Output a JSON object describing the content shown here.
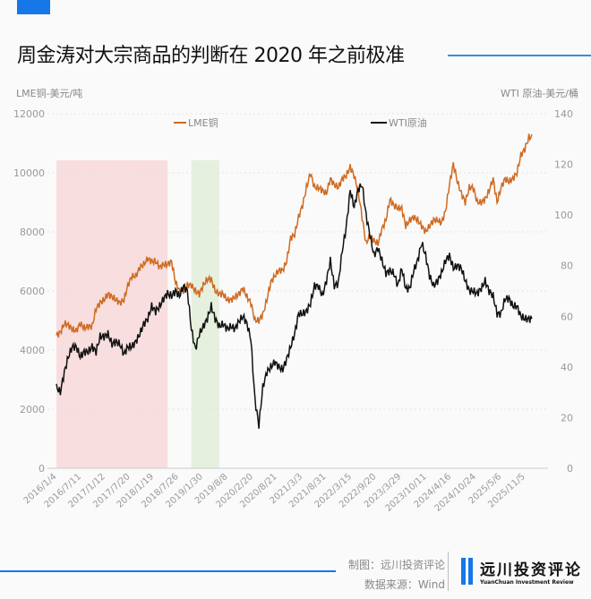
{
  "header": {
    "title": "周金涛对大宗商品的判断在 2020 年之前极准"
  },
  "footer": {
    "credit_line1": "制图：远川投资评论",
    "credit_line2": "数据来源：Wind",
    "logo_cn": "远川投资评论",
    "logo_en": "YuanChuan Investment Review"
  },
  "colors": {
    "copper": "#cf6a21",
    "oil": "#111111",
    "accent": "#1677e8",
    "shade_pink": "#f8dede",
    "shade_green": "#e6f0de"
  },
  "chart_data": {
    "type": "line",
    "title": "周金涛对大宗商品的判断在 2020 年之前极准",
    "ylabel_left": "LME铜-美元/吨",
    "ylabel_right": "WTI 原油-美元/桶",
    "ylim_left": [
      0,
      12000
    ],
    "ylim_right": [
      0,
      140
    ],
    "yticks_left": [
      "0",
      "2000",
      "4000",
      "6000",
      "8000",
      "10000",
      "12000"
    ],
    "yticks_right": [
      "0",
      "20",
      "40",
      "60",
      "80",
      "100",
      "120",
      "140"
    ],
    "xticks": [
      "2016/1/4",
      "2016/7/11",
      "2017/1/12",
      "2017/7/20",
      "2018/1/19",
      "2018/7/26",
      "2019/1/30",
      "2019/8/8",
      "2020/2/20",
      "2020/8/21",
      "2021/3/3",
      "2021/8/31",
      "2022/3/15",
      "2022/9/20",
      "2023/3/29",
      "2023/10/11",
      "2024/4/16",
      "2024/10/24",
      "2025/5/6",
      "2025/11/5"
    ],
    "xrange": [
      "2016/1",
      "2025/12"
    ],
    "grid": "horizontal-dashed",
    "legend": "top-center",
    "shaded_regions": [
      {
        "from": "2016/1",
        "to": "2018/5",
        "color": "pink"
      },
      {
        "from": "2018/11",
        "to": "2019/6",
        "color": "green"
      }
    ],
    "months_start": "2016/1",
    "series": [
      {
        "name": "LME铜",
        "axis": "left",
        "values": [
          4500,
          4600,
          4900,
          4850,
          4700,
          4650,
          4900,
          4750,
          4800,
          4800,
          5400,
          5600,
          5700,
          5900,
          5800,
          5700,
          5600,
          5700,
          6200,
          6500,
          6500,
          6800,
          6900,
          7100,
          7000,
          7000,
          6800,
          6900,
          6900,
          7000,
          6300,
          6000,
          6000,
          6200,
          6200,
          6000,
          5900,
          6200,
          6400,
          6400,
          6000,
          5900,
          5900,
          5700,
          5700,
          5800,
          5900,
          6100,
          5800,
          5600,
          5000,
          5000,
          5200,
          5700,
          6300,
          6500,
          6700,
          6700,
          7000,
          7800,
          7900,
          8500,
          8900,
          9500,
          10000,
          9500,
          9500,
          9400,
          9300,
          9800,
          9600,
          9500,
          9800,
          9900,
          10200,
          9900,
          9400,
          8500,
          7600,
          7900,
          7700,
          7600,
          8100,
          8400,
          9100,
          8900,
          8800,
          8800,
          8200,
          8400,
          8500,
          8400,
          8200,
          8000,
          8200,
          8400,
          8400,
          8300,
          8700,
          9600,
          10300,
          9700,
          9300,
          9000,
          9500,
          9500,
          9000,
          9000,
          9100,
          9400,
          9800,
          9000,
          9500,
          9800,
          9700,
          9800,
          10000,
          10600,
          10800,
          11200
        ]
      },
      {
        "name": "WTI原油",
        "axis": "right",
        "values": [
          32,
          30,
          38,
          44,
          48,
          48,
          44,
          46,
          46,
          48,
          46,
          52,
          52,
          53,
          49,
          50,
          49,
          45,
          48,
          48,
          50,
          53,
          57,
          59,
          64,
          62,
          64,
          67,
          69,
          68,
          70,
          68,
          72,
          70,
          55,
          47,
          53,
          56,
          59,
          64,
          59,
          56,
          57,
          55,
          56,
          55,
          58,
          60,
          57,
          51,
          27,
          17,
          32,
          38,
          40,
          42,
          40,
          39,
          43,
          48,
          53,
          61,
          61,
          62,
          65,
          72,
          72,
          68,
          74,
          82,
          72,
          73,
          86,
          95,
          110,
          103,
          110,
          112,
          100,
          92,
          84,
          87,
          82,
          77,
          78,
          77,
          72,
          79,
          71,
          71,
          78,
          82,
          89,
          84,
          76,
          72,
          74,
          77,
          82,
          84,
          79,
          80,
          79,
          74,
          70,
          70,
          69,
          71,
          74,
          70,
          68,
          61,
          61,
          67,
          67,
          64,
          64,
          60,
          59,
          59
        ]
      }
    ]
  }
}
